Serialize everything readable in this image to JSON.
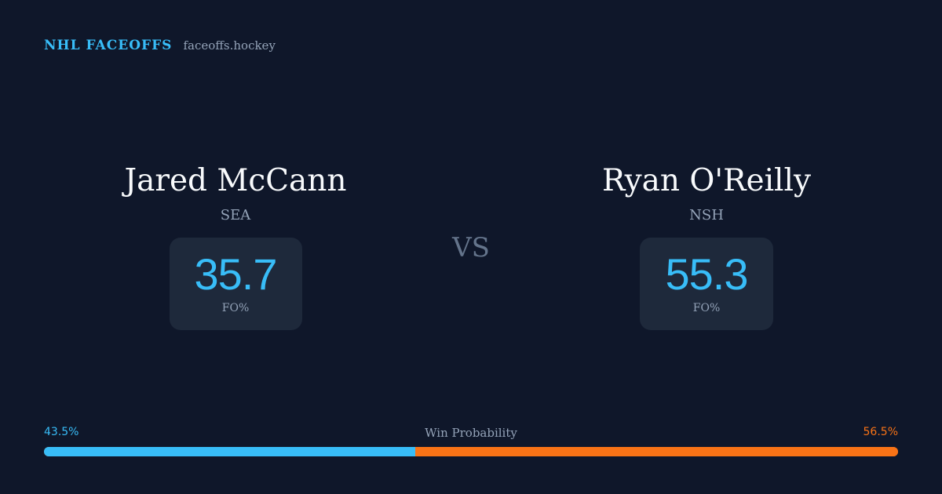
{
  "brand": {
    "name": "NHL FACEOFFS",
    "url": "faceoffs.hockey"
  },
  "players": [
    {
      "name": "Jared McCann",
      "team": "SEA",
      "stat_value": "35.7",
      "stat_label": "FO%"
    },
    {
      "name": "Ryan O'Reilly",
      "team": "NSH",
      "stat_value": "55.3",
      "stat_label": "FO%"
    }
  ],
  "vs_label": "VS",
  "win_probability": {
    "title": "Win Probability",
    "left_label": "43.5%",
    "right_label": "56.5%",
    "left_value": 43.5,
    "right_value": 56.5
  },
  "colors": {
    "background": "#0f172a",
    "accent_left": "#38bdf8",
    "accent_right": "#f97316",
    "card": "#1e293b"
  }
}
